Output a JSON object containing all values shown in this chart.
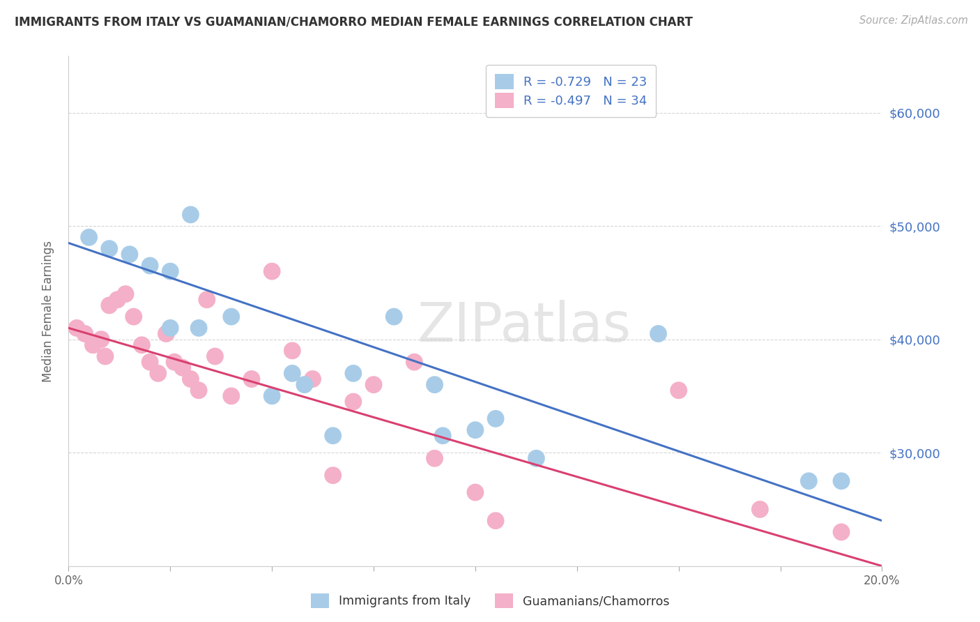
{
  "title": "IMMIGRANTS FROM ITALY VS GUAMANIAN/CHAMORRO MEDIAN FEMALE EARNINGS CORRELATION CHART",
  "source": "Source: ZipAtlas.com",
  "ylabel": "Median Female Earnings",
  "xlim": [
    0.0,
    0.2
  ],
  "ylim": [
    20000,
    65000
  ],
  "xtick_values": [
    0.0,
    0.025,
    0.05,
    0.075,
    0.1,
    0.125,
    0.15,
    0.175,
    0.2
  ],
  "xtick_labels": [
    "0.0%",
    "",
    "",
    "",
    "",
    "",
    "",
    "",
    "20.0%"
  ],
  "ytick_values": [
    30000,
    40000,
    50000,
    60000
  ],
  "italy_R": -0.729,
  "italy_N": 23,
  "guam_R": -0.497,
  "guam_N": 34,
  "italy_dot_color": "#a8cce8",
  "guam_dot_color": "#f4b0c8",
  "italy_line_color": "#4472c4",
  "guam_line_color": "#d94070",
  "legend_label_italy": "Immigrants from Italy",
  "legend_label_guam": "Guamanians/Chamorros",
  "watermark": "ZIPatlas",
  "title_color": "#333333",
  "source_color": "#aaaaaa",
  "right_label_color": "#4472c4",
  "grid_color": "#d5d5d5",
  "background_color": "#ffffff",
  "italy_x": [
    0.005,
    0.01,
    0.015,
    0.02,
    0.025,
    0.025,
    0.03,
    0.032,
    0.04,
    0.05,
    0.055,
    0.058,
    0.065,
    0.07,
    0.08,
    0.09,
    0.092,
    0.1,
    0.105,
    0.115,
    0.145,
    0.182,
    0.19
  ],
  "italy_y": [
    49000,
    48000,
    47500,
    46500,
    41000,
    46000,
    51000,
    41000,
    42000,
    35000,
    37000,
    36000,
    31500,
    37000,
    42000,
    36000,
    31500,
    32000,
    33000,
    29500,
    40500,
    27500,
    27500
  ],
  "guam_x": [
    0.002,
    0.004,
    0.006,
    0.008,
    0.009,
    0.01,
    0.012,
    0.014,
    0.016,
    0.018,
    0.02,
    0.022,
    0.024,
    0.026,
    0.028,
    0.03,
    0.032,
    0.034,
    0.036,
    0.04,
    0.045,
    0.05,
    0.055,
    0.06,
    0.065,
    0.07,
    0.075,
    0.085,
    0.09,
    0.1,
    0.105,
    0.15,
    0.17,
    0.19
  ],
  "guam_y": [
    41000,
    40500,
    39500,
    40000,
    38500,
    43000,
    43500,
    44000,
    42000,
    39500,
    38000,
    37000,
    40500,
    38000,
    37500,
    36500,
    35500,
    43500,
    38500,
    35000,
    36500,
    46000,
    39000,
    36500,
    28000,
    34500,
    36000,
    38000,
    29500,
    26500,
    24000,
    35500,
    25000,
    23000
  ]
}
